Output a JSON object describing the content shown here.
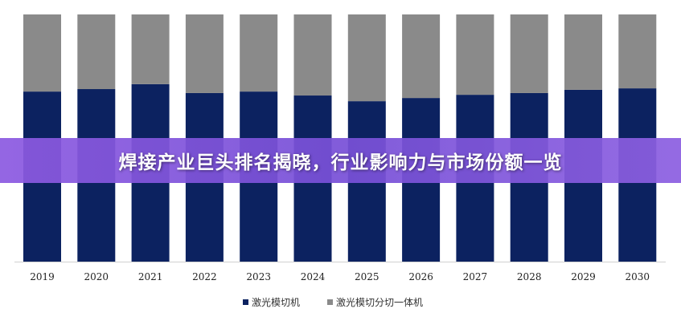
{
  "banner": {
    "title": "焊接产业巨头排名揭晓，行业影响力与市场份额一览"
  },
  "chart_data": {
    "type": "bar",
    "stacked": true,
    "percent": true,
    "categories": [
      "2019",
      "2020",
      "2021",
      "2022",
      "2023",
      "2024",
      "2025",
      "2026",
      "2027",
      "2028",
      "2029",
      "2030"
    ],
    "series": [
      {
        "name": "激光模切机",
        "color": "#0c2260",
        "values": [
          68.8,
          69.8,
          71.8,
          68.2,
          68.8,
          67.2,
          64.9,
          66.2,
          67.5,
          68.2,
          69.5,
          70.1
        ]
      },
      {
        "name": "激光模切分切一体机",
        "color": "#8a8a8a",
        "values": [
          31.2,
          30.2,
          28.2,
          31.8,
          31.2,
          32.8,
          35.1,
          33.8,
          32.5,
          31.8,
          30.5,
          29.9
        ]
      }
    ],
    "ylim": [
      0,
      100
    ],
    "grid": false,
    "legend": "bottom"
  }
}
